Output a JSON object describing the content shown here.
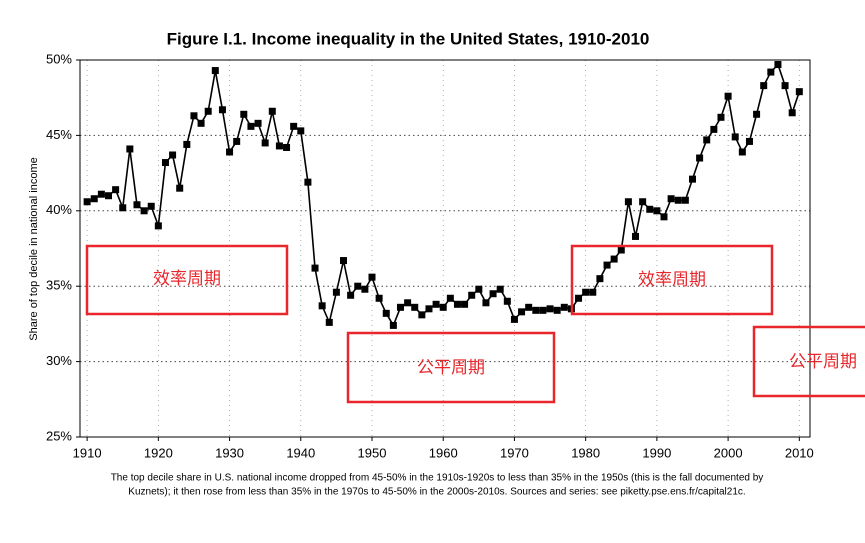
{
  "chart_data": {
    "type": "line",
    "title": "Figure I.1. Income inequality in the United States, 1910-2010",
    "y_label": "Share of top decile in national income",
    "caption": [
      "The top decile share in U.S. national income dropped from 45-50% in the 1910s-1920s to less than 35% in the 1950s (this is the fall documented by",
      "Kuznets); it then rose from less than 35% in the 1970s to 45-50% in the 2000s-2010s. Sources and series: see piketty.pse.ens.fr/capital21c."
    ],
    "annotations": [
      "效率周期",
      "公平周期",
      "效率周期",
      "公平周期"
    ],
    "color": "#000000",
    "grid": true,
    "xlim": [
      1909,
      2011.5
    ],
    "xticks": [
      1910,
      1920,
      1930,
      1940,
      1950,
      1960,
      1970,
      1980,
      1990,
      2000,
      2010
    ],
    "ylim": [
      25,
      50
    ],
    "yticks": [
      {
        "value": 25,
        "label": "25%"
      },
      {
        "value": 30,
        "label": "30%"
      },
      {
        "value": 35,
        "label": "35%"
      },
      {
        "value": 40,
        "label": "40%"
      },
      {
        "value": 45,
        "label": "45%"
      },
      {
        "value": 50,
        "label": "50%"
      }
    ],
    "x": [
      1910,
      1911,
      1912,
      1913,
      1914,
      1915,
      1916,
      1917,
      1918,
      1919,
      1920,
      1921,
      1922,
      1923,
      1924,
      1925,
      1926,
      1927,
      1928,
      1929,
      1930,
      1931,
      1932,
      1933,
      1934,
      1935,
      1936,
      1937,
      1938,
      1939,
      1940,
      1941,
      1942,
      1943,
      1944,
      1945,
      1946,
      1947,
      1948,
      1949,
      1950,
      1951,
      1952,
      1953,
      1954,
      1955,
      1956,
      1957,
      1958,
      1959,
      1960,
      1961,
      1962,
      1963,
      1964,
      1965,
      1966,
      1967,
      1968,
      1969,
      1970,
      1971,
      1972,
      1973,
      1974,
      1975,
      1976,
      1977,
      1978,
      1979,
      1980,
      1981,
      1982,
      1983,
      1984,
      1985,
      1986,
      1987,
      1988,
      1989,
      1990,
      1991,
      1992,
      1993,
      1994,
      1995,
      1996,
      1997,
      1998,
      1999,
      2000,
      2001,
      2002,
      2003,
      2004,
      2005,
      2006,
      2007,
      2008,
      2009,
      2010
    ],
    "values": [
      40.6,
      40.8,
      41.1,
      41.0,
      41.4,
      40.2,
      44.1,
      40.4,
      40.0,
      40.3,
      39.0,
      43.2,
      43.7,
      41.5,
      44.4,
      46.3,
      45.8,
      46.6,
      49.3,
      46.7,
      43.9,
      44.6,
      46.4,
      45.6,
      45.8,
      44.5,
      46.6,
      44.3,
      44.2,
      45.6,
      45.3,
      41.9,
      36.2,
      33.7,
      32.6,
      34.6,
      36.7,
      34.4,
      35.0,
      34.8,
      35.6,
      34.2,
      33.2,
      32.4,
      33.6,
      33.9,
      33.6,
      33.1,
      33.5,
      33.8,
      33.6,
      34.2,
      33.8,
      33.8,
      34.4,
      34.8,
      33.9,
      34.5,
      34.8,
      34.0,
      32.8,
      33.3,
      33.6,
      33.4,
      33.4,
      33.5,
      33.4,
      33.6,
      33.5,
      34.2,
      34.6,
      34.6,
      35.5,
      36.4,
      36.8,
      37.4,
      40.6,
      38.3,
      40.6,
      40.1,
      40.0,
      39.6,
      40.8,
      40.7,
      40.7,
      42.1,
      43.5,
      44.7,
      45.4,
      46.2,
      47.6,
      44.9,
      43.9,
      44.6,
      46.4,
      48.3,
      49.2,
      49.7,
      48.3,
      46.5,
      47.9
    ]
  }
}
